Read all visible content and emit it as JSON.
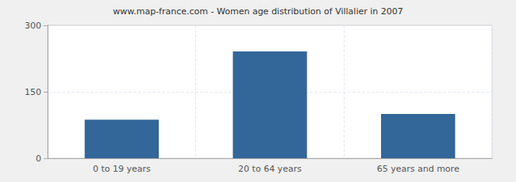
{
  "chart_data": {
    "type": "bar",
    "title": "www.map-france.com - Women age distribution of Villalier in 2007",
    "categories": [
      "0 to 19 years",
      "20 to 64 years",
      "65 years and more"
    ],
    "values": [
      87,
      241,
      100
    ],
    "color": "#336699",
    "ylim": [
      0,
      300
    ],
    "yticks": [
      0,
      150,
      300
    ],
    "grid": true
  }
}
